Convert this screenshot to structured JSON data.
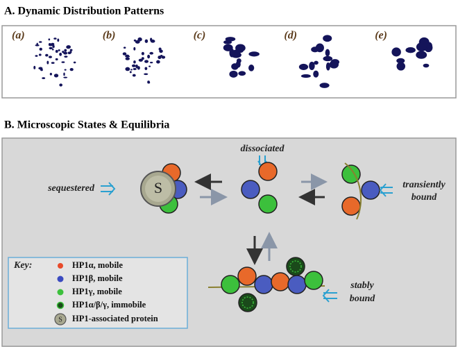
{
  "section_a": {
    "title": "A. Dynamic Distribution Patterns",
    "panels": [
      "(a)",
      "(b)",
      "(c)",
      "(d)",
      "(e)"
    ]
  },
  "section_b": {
    "title": "B. Microscopic States & Equilibria",
    "states": {
      "dissociated": "dissociated",
      "sequestered": "sequestered",
      "transiently": [
        "transiently",
        "bound"
      ],
      "stably": [
        "stably",
        "bound"
      ]
    },
    "protein_symbol": "S",
    "key": {
      "title": "Key:",
      "items": [
        "HP1α, mobile",
        "HP1β, mobile",
        "HP1γ, mobile",
        "HP1α/β/γ, immobile",
        "HP1-associated protein"
      ],
      "symbol": "S"
    }
  }
}
